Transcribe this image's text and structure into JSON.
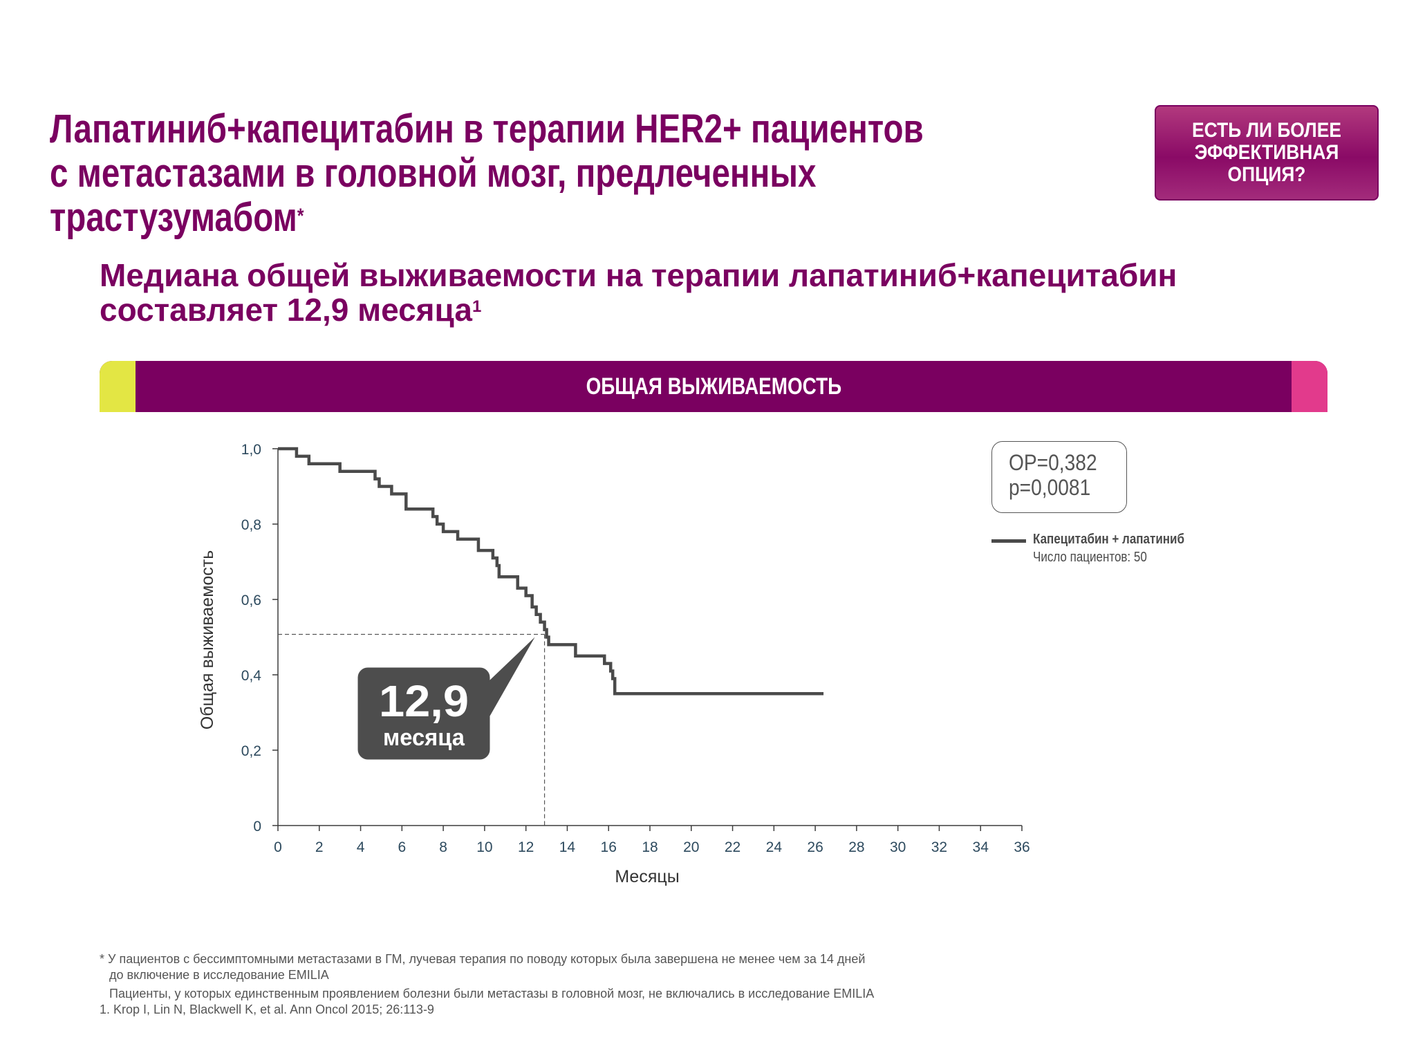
{
  "header": {
    "title_line1": "Лапатиниб+капецитабин в терапии HER2+ пациентов",
    "title_line2": "с метастазами в головной мозг, предлеченных трастузумабом",
    "title_mark": "*",
    "cta_line1": "ЕСТЬ ЛИ БОЛЕЕ",
    "cta_line2": "ЭФФЕКТИВНАЯ",
    "cta_line3": "ОПЦИЯ?"
  },
  "subtitle": {
    "line1": "Медиана общей выживаемости на терапии лапатиниб+капецитабин",
    "line2": "составляет 12,9 месяца",
    "ref": "1"
  },
  "band": {
    "title": "ОБЩАЯ ВЫЖИВАЕМОСТЬ"
  },
  "stats": {
    "hr": "ОР=0,382",
    "p": "p=0,0081"
  },
  "legend": {
    "series": "Капецитабин + лапатиниб",
    "count": "Число пациентов: 50"
  },
  "callout": {
    "value": "12,9",
    "unit": "месяца"
  },
  "colors": {
    "brand_purple": "#7a0060",
    "band_left": "#e3e644",
    "band_right": "#e23a8c",
    "curve": "#4a4a4a",
    "callout_bg": "#4d4d4d"
  },
  "chart_data": {
    "type": "line",
    "subtype": "kaplan-meier-step",
    "xlabel": "Месяцы",
    "ylabel": "Общая выживаемость",
    "xlim": [
      0,
      36
    ],
    "ylim": [
      0,
      1
    ],
    "x_ticks": [
      "0",
      "2",
      "4",
      "6",
      "8",
      "10",
      "12",
      "14",
      "16",
      "18",
      "20",
      "22",
      "24",
      "26",
      "28",
      "30",
      "32",
      "34",
      "36"
    ],
    "y_ticks": [
      "0",
      "0,2",
      "0,4",
      "0,6",
      "0,8",
      "1,0"
    ],
    "median": {
      "x": 12.9,
      "y": 0.5
    },
    "series": [
      {
        "name": "Капецитабин + лапатиниб",
        "points": [
          [
            0,
            1.0
          ],
          [
            0.9,
            0.98
          ],
          [
            1.5,
            0.96
          ],
          [
            3.0,
            0.94
          ],
          [
            4.7,
            0.92
          ],
          [
            4.9,
            0.9
          ],
          [
            5.5,
            0.88
          ],
          [
            6.2,
            0.84
          ],
          [
            7.5,
            0.82
          ],
          [
            7.7,
            0.8
          ],
          [
            8.0,
            0.78
          ],
          [
            8.7,
            0.76
          ],
          [
            9.7,
            0.73
          ],
          [
            10.4,
            0.71
          ],
          [
            10.6,
            0.69
          ],
          [
            10.7,
            0.66
          ],
          [
            11.6,
            0.63
          ],
          [
            12.0,
            0.61
          ],
          [
            12.3,
            0.58
          ],
          [
            12.5,
            0.56
          ],
          [
            12.7,
            0.54
          ],
          [
            12.9,
            0.52
          ],
          [
            13.0,
            0.5
          ],
          [
            13.1,
            0.48
          ],
          [
            14.4,
            0.45
          ],
          [
            15.8,
            0.43
          ],
          [
            16.1,
            0.41
          ],
          [
            16.2,
            0.39
          ],
          [
            16.3,
            0.35
          ],
          [
            26.4,
            0.35
          ]
        ]
      }
    ]
  },
  "footnotes": {
    "line1": "* У пациентов с бессимптомными метастазами в ГМ, лучевая терапия по поводу которых была завершена не менее чем за 14 дней",
    "line2": "до включение в исследование EMILIA",
    "line3": "Пациенты, у которых единственным проявлением болезни были метастазы в головной мозг, не включались в исследование EMILIA",
    "line4": "1. Krop I, Lin N, Blackwell K, et al. Ann Oncol 2015; 26:113-9"
  }
}
